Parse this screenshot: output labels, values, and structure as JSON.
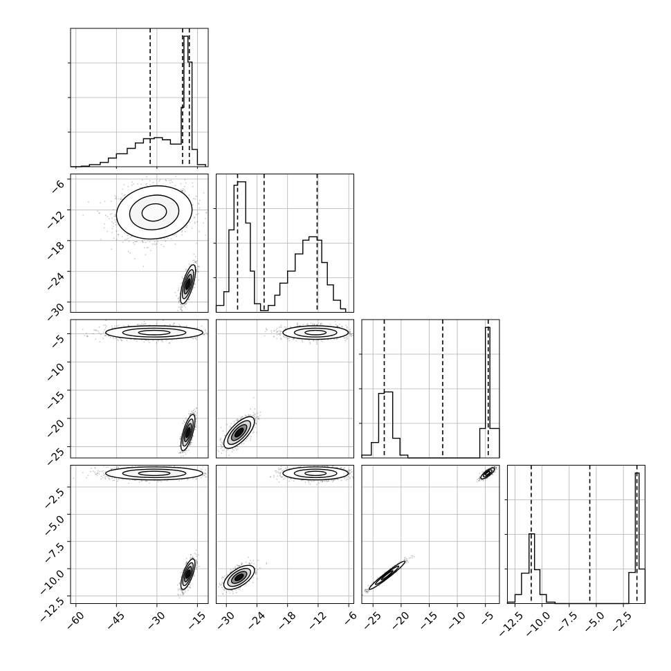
{
  "chart_data": {
    "type": "corner",
    "title": "",
    "grid": true,
    "colors": {
      "line": "#000000",
      "grid": "#b0b0b0",
      "points": "#000000",
      "background": "#ffffff"
    },
    "params": [
      {
        "range": [
          -62,
          -11
        ],
        "ticks": [
          -60,
          -45,
          -30,
          -15
        ],
        "tick_labels": [
          "−60",
          "−45",
          "−30",
          "−15"
        ],
        "quantiles": [
          -32.5,
          -20.5,
          -18.0
        ]
      },
      {
        "range": [
          -32,
          -5
        ],
        "ticks": [
          -30,
          -24,
          -18,
          -12,
          -6
        ],
        "tick_labels": [
          "−30",
          "−24",
          "−18",
          "−12",
          "−6"
        ],
        "quantiles": [
          -27.8,
          -22.6,
          -12.2
        ]
      },
      {
        "range": [
          -27,
          -2.5
        ],
        "ticks": [
          -25,
          -20,
          -15,
          -10,
          -5
        ],
        "tick_labels": [
          "−25",
          "−20",
          "−15",
          "−10",
          "−5"
        ],
        "quantiles": [
          -23.0,
          -12.6,
          -4.5
        ]
      },
      {
        "range": [
          -13.2,
          -0.5
        ],
        "ticks": [
          -12.5,
          -10.0,
          -7.5,
          -5.0,
          -2.5
        ],
        "tick_labels": [
          "−12.5",
          "−10.0",
          "−7.5",
          "−5.0",
          "−2.5"
        ],
        "quantiles": [
          -11.0,
          -5.6,
          -1.25
        ]
      }
    ],
    "histograms": [
      {
        "param": 0,
        "bins": [
          [
            -62,
            -58,
            0
          ],
          [
            -58,
            -55,
            0.5
          ],
          [
            -55,
            -51,
            2
          ],
          [
            -51,
            -48,
            4
          ],
          [
            -48,
            -45,
            8
          ],
          [
            -45,
            -41,
            12
          ],
          [
            -41,
            -38,
            17
          ],
          [
            -38,
            -35,
            22
          ],
          [
            -35,
            -31,
            26
          ],
          [
            -31,
            -28,
            27
          ],
          [
            -28,
            -25,
            25
          ],
          [
            -25,
            -21,
            21
          ],
          [
            -21,
            -20,
            55
          ],
          [
            -20,
            -18.5,
            121
          ],
          [
            -18.5,
            -17,
            97
          ],
          [
            -17,
            -15,
            16
          ],
          [
            -15,
            -12,
            2
          ]
        ]
      },
      {
        "param": 1,
        "bins": [
          [
            -32,
            -30.5,
            4
          ],
          [
            -30.5,
            -29.5,
            12
          ],
          [
            -29.5,
            -28.5,
            48
          ],
          [
            -28.5,
            -27.8,
            74
          ],
          [
            -27.8,
            -26.2,
            76
          ],
          [
            -26.2,
            -25.3,
            52
          ],
          [
            -25.3,
            -24.5,
            24
          ],
          [
            -24.5,
            -23.3,
            5
          ],
          [
            -23.3,
            -21.8,
            1
          ],
          [
            -21.8,
            -20.5,
            4
          ],
          [
            -20.5,
            -19.5,
            10
          ],
          [
            -19.5,
            -18,
            17
          ],
          [
            -18,
            -16.5,
            24
          ],
          [
            -16.5,
            -15,
            34
          ],
          [
            -15,
            -13.8,
            42
          ],
          [
            -13.8,
            -12.2,
            44
          ],
          [
            -12.2,
            -11.3,
            42
          ],
          [
            -11.3,
            -10.2,
            29
          ],
          [
            -10.2,
            -9,
            16
          ],
          [
            -9,
            -7.6,
            7
          ],
          [
            -7.6,
            -6.6,
            2
          ]
        ]
      },
      {
        "param": 2,
        "bins": [
          [
            -27,
            -25.3,
            4
          ],
          [
            -25.3,
            -24,
            22
          ],
          [
            -24,
            -23,
            92
          ],
          [
            -23,
            -21.5,
            94
          ],
          [
            -21.5,
            -20.2,
            28
          ],
          [
            -20.2,
            -18.8,
            4
          ],
          [
            -18.8,
            -17,
            0
          ],
          [
            -17,
            -6,
            0
          ],
          [
            -6,
            -5,
            42
          ],
          [
            -5,
            -4.2,
            186
          ],
          [
            -4.2,
            -2.5,
            42
          ]
        ]
      },
      {
        "param": 3,
        "bins": [
          [
            -13.2,
            -12.5,
            2
          ],
          [
            -12.5,
            -11.9,
            13
          ],
          [
            -11.9,
            -11.2,
            44
          ],
          [
            -11.2,
            -10.7,
            101
          ],
          [
            -10.7,
            -10.2,
            49
          ],
          [
            -10.2,
            -9.6,
            13
          ],
          [
            -9.6,
            -8.8,
            2
          ],
          [
            -8.8,
            -2,
            0
          ],
          [
            -2,
            -1.4,
            45
          ],
          [
            -1.4,
            -1.05,
            189
          ],
          [
            -1.05,
            -0.5,
            50
          ]
        ]
      }
    ],
    "pairs": [
      {
        "x": 1,
        "y": 0,
        "modes": [
          {
            "cx": -31,
            "cy": -12.5,
            "sx": 7,
            "sy": 2.6,
            "rho": 0.1,
            "n": 1300,
            "levels": 3
          },
          {
            "cx": -18.5,
            "cy": -26.5,
            "sx": 1.4,
            "sy": 1.9,
            "rho": 0.7,
            "n": 800,
            "levels": 4
          }
        ]
      },
      {
        "x": 2,
        "y": 0,
        "modes": [
          {
            "cx": -31,
            "cy": -4.8,
            "sx": 9,
            "sy": 0.6,
            "rho": 0,
            "n": 1300,
            "levels": 3
          },
          {
            "cx": -18.5,
            "cy": -22.5,
            "sx": 1.3,
            "sy": 1.6,
            "rho": 0.7,
            "n": 800,
            "levels": 4
          }
        ]
      },
      {
        "x": 2,
        "y": 1,
        "modes": [
          {
            "cx": -12.5,
            "cy": -4.8,
            "sx": 3.2,
            "sy": 0.6,
            "rho": 0,
            "n": 1300,
            "levels": 3
          },
          {
            "cx": -27.5,
            "cy": -22.5,
            "sx": 1.5,
            "sy": 1.4,
            "rho": 0.7,
            "n": 800,
            "levels": 4
          }
        ]
      },
      {
        "x": 3,
        "y": 0,
        "modes": [
          {
            "cx": -31,
            "cy": -1.25,
            "sx": 9,
            "sy": 0.3,
            "rho": 0,
            "n": 1300,
            "levels": 3
          },
          {
            "cx": -18.5,
            "cy": -10.5,
            "sx": 1.3,
            "sy": 0.7,
            "rho": 0.7,
            "n": 800,
            "levels": 4
          }
        ]
      },
      {
        "x": 3,
        "y": 1,
        "modes": [
          {
            "cx": -12.5,
            "cy": -1.25,
            "sx": 3.2,
            "sy": 0.3,
            "rho": 0,
            "n": 1300,
            "levels": 3
          },
          {
            "cx": -27.5,
            "cy": -10.8,
            "sx": 1.5,
            "sy": 0.55,
            "rho": 0.6,
            "n": 800,
            "levels": 4
          }
        ]
      },
      {
        "x": 3,
        "y": 2,
        "modes": [
          {
            "cx": -4.6,
            "cy": -1.25,
            "sx": 0.6,
            "sy": 0.25,
            "rho": 0.8,
            "n": 700,
            "levels": 3
          },
          {
            "cx": -22.5,
            "cy": -10.6,
            "sx": 1.6,
            "sy": 0.65,
            "rho": 0.97,
            "n": 800,
            "levels": 3
          }
        ]
      }
    ]
  }
}
